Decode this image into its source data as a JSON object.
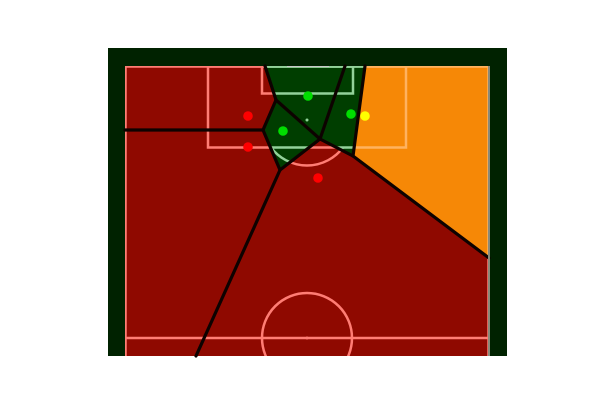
{
  "colors": {
    "background": "#ffffff",
    "pitch": "#002200",
    "attacking_team_region": "#8f0900",
    "defending_team_region": "#003e00",
    "highlight_region": "#f68806",
    "attacker_line": "#ff7d74",
    "defender_line": "#93d29a",
    "highlight_line": "#ffb25f",
    "boundary": "#0d0200",
    "attacker_dot": "#ff0000",
    "defender_dot": "#00dd00",
    "highlighted_player": "#ffff00"
  },
  "regions": [
    {
      "id": "red-top-left",
      "team": "attacking"
    },
    {
      "id": "red-left",
      "team": "attacking"
    },
    {
      "id": "red-bottom",
      "team": "attacking"
    },
    {
      "id": "green-top",
      "team": "defending"
    },
    {
      "id": "green-left",
      "team": "defending"
    },
    {
      "id": "green-right",
      "team": "defending"
    },
    {
      "id": "orange-right",
      "team": "highlight"
    }
  ],
  "players": [
    {
      "team": "attacking"
    },
    {
      "team": "attacking"
    },
    {
      "team": "attacking"
    },
    {
      "team": "defending"
    },
    {
      "team": "defending"
    },
    {
      "team": "defending"
    },
    {
      "team": "highlighted"
    }
  ]
}
